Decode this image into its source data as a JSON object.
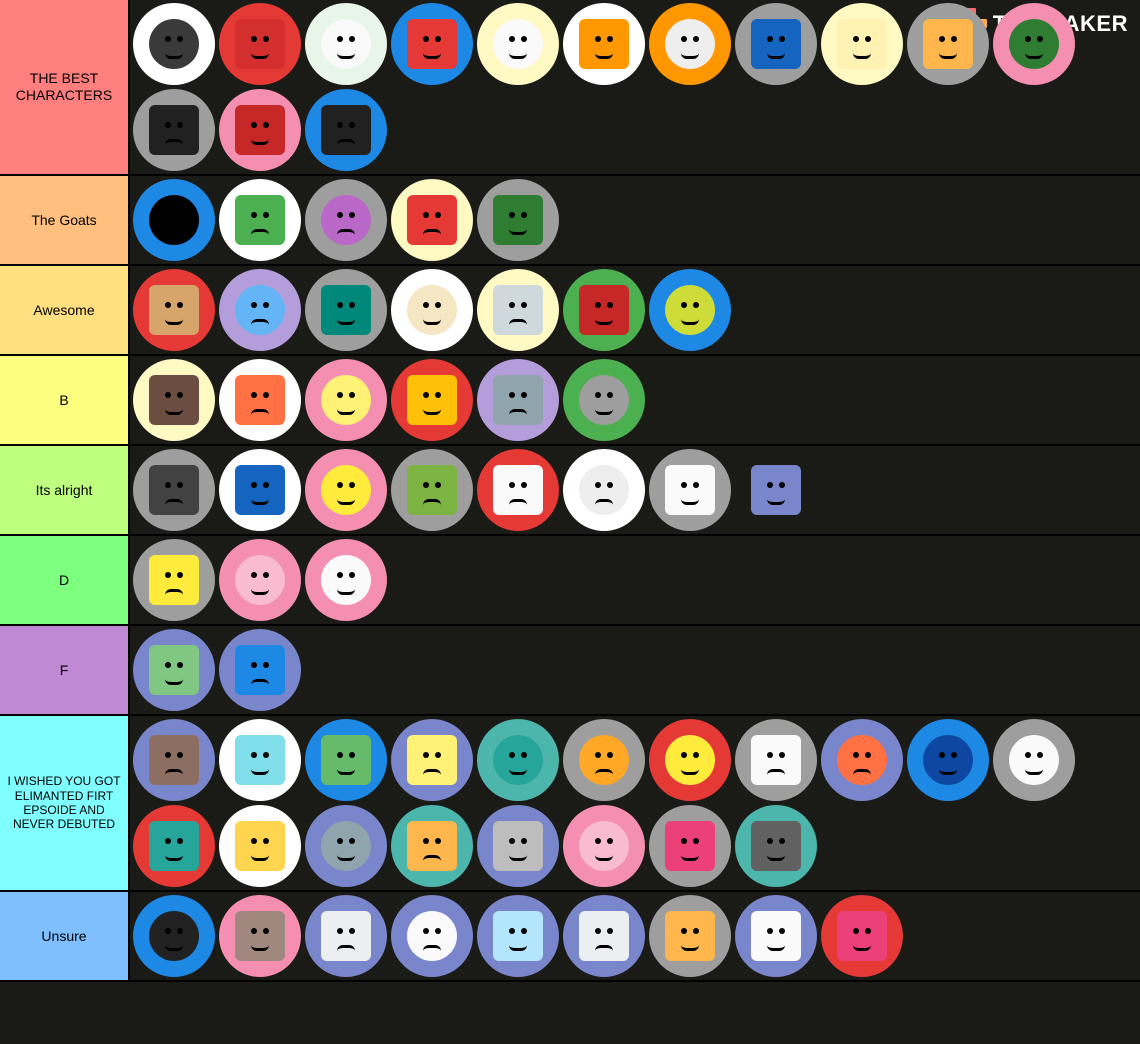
{
  "brand": "TIERMAKER",
  "logo_palette": [
    "#ff6b6b",
    "#ff6b6b",
    "#ff6b6b",
    "#1a1a17",
    "#ffa94d",
    "#ffa94d",
    "#ffa94d",
    "#ffa94d",
    "#8ce99a",
    "#8ce99a",
    "#1a1a17",
    "#1a1a17"
  ],
  "tiers": [
    {
      "label": "THE BEST CHARACTERS",
      "label_bg": "#ff7f7f",
      "items": [
        {
          "bg": "#ffffff",
          "body": "#3a3a3a",
          "shape": "circ"
        },
        {
          "bg": "#e53935",
          "body": "#d32f2f",
          "shape": "rect"
        },
        {
          "bg": "#e8f5e9",
          "body": "#fafafa",
          "shape": "circ"
        },
        {
          "bg": "#1e88e5",
          "body": "#e53935",
          "shape": "rect"
        },
        {
          "bg": "#fff9c4",
          "body": "#fafafa",
          "shape": "circ"
        },
        {
          "bg": "#ffffff",
          "body": "#ff9800",
          "shape": "rect"
        },
        {
          "bg": "#ff9800",
          "body": "#eeeeee",
          "shape": "circ"
        },
        {
          "bg": "#9e9e9e",
          "body": "#1565c0",
          "shape": "rect"
        },
        {
          "bg": "#fff9c4",
          "body": "#fff2b3",
          "shape": "rect"
        },
        {
          "bg": "#9e9e9e",
          "body": "#ffb74d",
          "shape": "rect"
        },
        {
          "bg": "#f48fb1",
          "body": "#2e7d32",
          "shape": "circ"
        },
        {
          "bg": "#9e9e9e",
          "body": "#212121",
          "shape": "rect"
        },
        {
          "bg": "#f48fb1",
          "body": "#c62828",
          "shape": "rect"
        },
        {
          "bg": "#1e88e5",
          "body": "#212121",
          "shape": "rect"
        }
      ]
    },
    {
      "label": "The Goats",
      "label_bg": "#ffbf7f",
      "items": [
        {
          "bg": "#1e88e5",
          "body": "#000000",
          "shape": "circ"
        },
        {
          "bg": "#ffffff",
          "body": "#4caf50",
          "shape": "rect"
        },
        {
          "bg": "#9e9e9e",
          "body": "#ba68c8",
          "shape": "circ"
        },
        {
          "bg": "#fff9c4",
          "body": "#e53935",
          "shape": "rect"
        },
        {
          "bg": "#9e9e9e",
          "body": "#2e7d32",
          "shape": "rect"
        }
      ]
    },
    {
      "label": "Awesome",
      "label_bg": "#ffdf7f",
      "items": [
        {
          "bg": "#e53935",
          "body": "#d7a56b",
          "shape": "rect"
        },
        {
          "bg": "#b39ddb",
          "body": "#64b5f6",
          "shape": "circ"
        },
        {
          "bg": "#9e9e9e",
          "body": "#00897b",
          "shape": "rect"
        },
        {
          "bg": "#ffffff",
          "body": "#f5e6c4",
          "shape": "circ"
        },
        {
          "bg": "#fff9c4",
          "body": "#cfd8dc",
          "shape": "rect"
        },
        {
          "bg": "#4caf50",
          "body": "#c62828",
          "shape": "rect"
        },
        {
          "bg": "#1e88e5",
          "body": "#cddc39",
          "shape": "circ"
        }
      ]
    },
    {
      "label": "B",
      "label_bg": "#fefe7e",
      "items": [
        {
          "bg": "#fff9c4",
          "body": "#6d4c41",
          "shape": "rect"
        },
        {
          "bg": "#ffffff",
          "body": "#ff7043",
          "shape": "rect"
        },
        {
          "bg": "#f48fb1",
          "body": "#fff176",
          "shape": "circ"
        },
        {
          "bg": "#e53935",
          "body": "#ffc107",
          "shape": "rect"
        },
        {
          "bg": "#b39ddb",
          "body": "#90a4ae",
          "shape": "rect"
        },
        {
          "bg": "#4caf50",
          "body": "#9e9e9e",
          "shape": "circ"
        }
      ]
    },
    {
      "label": "Its alright",
      "label_bg": "#bfff7f",
      "items": [
        {
          "bg": "#9e9e9e",
          "body": "#424242",
          "shape": "rect"
        },
        {
          "bg": "#ffffff",
          "body": "#1565c0",
          "shape": "rect"
        },
        {
          "bg": "#f48fb1",
          "body": "#ffeb3b",
          "shape": "circ"
        },
        {
          "bg": "#9e9e9e",
          "body": "#7cb342",
          "shape": "rect"
        },
        {
          "bg": "#e53935",
          "body": "#fafafa",
          "shape": "rect"
        },
        {
          "bg": "#ffffff",
          "body": "#eeeeee",
          "shape": "circ"
        },
        {
          "bg": "#9e9e9e",
          "body": "#fafafa",
          "shape": "rect"
        },
        {
          "bg": "#1a1a17",
          "body": "#7986cb",
          "shape": "rect"
        }
      ]
    },
    {
      "label": "D",
      "label_bg": "#7fff7f",
      "items": [
        {
          "bg": "#9e9e9e",
          "body": "#ffeb3b",
          "shape": "rect"
        },
        {
          "bg": "#f48fb1",
          "body": "#f8bbd0",
          "shape": "circ"
        },
        {
          "bg": "#f48fb1",
          "body": "#fafafa",
          "shape": "circ"
        }
      ]
    },
    {
      "label": "F",
      "label_bg": "#bf89d3",
      "items": [
        {
          "bg": "#7986cb",
          "body": "#81c784",
          "shape": "rect"
        },
        {
          "bg": "#7986cb",
          "body": "#1e88e5",
          "shape": "rect"
        }
      ]
    },
    {
      "label": "I WISHED YOU GOT ELIMANTED FIRT EPSOIDE AND NEVER DEBUTED",
      "label_bg": "#7fffff",
      "items": [
        {
          "bg": "#7986cb",
          "body": "#8d6e63",
          "shape": "rect"
        },
        {
          "bg": "#ffffff",
          "body": "#80deea",
          "shape": "rect"
        },
        {
          "bg": "#1e88e5",
          "body": "#66bb6a",
          "shape": "rect"
        },
        {
          "bg": "#7986cb",
          "body": "#fff176",
          "shape": "rect"
        },
        {
          "bg": "#4db6ac",
          "body": "#26a69a",
          "shape": "circ"
        },
        {
          "bg": "#9e9e9e",
          "body": "#ffa726",
          "shape": "circ"
        },
        {
          "bg": "#e53935",
          "body": "#ffeb3b",
          "shape": "circ"
        },
        {
          "bg": "#9e9e9e",
          "body": "#fafafa",
          "shape": "rect"
        },
        {
          "bg": "#7986cb",
          "body": "#ff7043",
          "shape": "circ"
        },
        {
          "bg": "#1e88e5",
          "body": "#0d47a1",
          "shape": "circ"
        },
        {
          "bg": "#9e9e9e",
          "body": "#fafafa",
          "shape": "circ"
        },
        {
          "bg": "#e53935",
          "body": "#26a69a",
          "shape": "rect"
        },
        {
          "bg": "#ffffff",
          "body": "#ffd54f",
          "shape": "rect"
        },
        {
          "bg": "#7986cb",
          "body": "#90a4ae",
          "shape": "circ"
        },
        {
          "bg": "#4db6ac",
          "body": "#ffb74d",
          "shape": "rect"
        },
        {
          "bg": "#7986cb",
          "body": "#bdbdbd",
          "shape": "rect"
        },
        {
          "bg": "#f48fb1",
          "body": "#f8bbd0",
          "shape": "circ"
        },
        {
          "bg": "#9e9e9e",
          "body": "#ec407a",
          "shape": "rect"
        },
        {
          "bg": "#4db6ac",
          "body": "#616161",
          "shape": "rect"
        }
      ]
    },
    {
      "label": "Unsure",
      "label_bg": "#7fbfff",
      "items": [
        {
          "bg": "#1e88e5",
          "body": "#212121",
          "shape": "circ"
        },
        {
          "bg": "#f48fb1",
          "body": "#a1887f",
          "shape": "rect"
        },
        {
          "bg": "#7986cb",
          "body": "#eceff1",
          "shape": "rect"
        },
        {
          "bg": "#7986cb",
          "body": "#fafafa",
          "shape": "circ"
        },
        {
          "bg": "#7986cb",
          "body": "#b3e5fc",
          "shape": "rect"
        },
        {
          "bg": "#7986cb",
          "body": "#eceff1",
          "shape": "rect"
        },
        {
          "bg": "#9e9e9e",
          "body": "#ffb74d",
          "shape": "rect"
        },
        {
          "bg": "#7986cb",
          "body": "#fafafa",
          "shape": "rect"
        },
        {
          "bg": "#e53935",
          "body": "#ec407a",
          "shape": "rect"
        }
      ]
    }
  ]
}
